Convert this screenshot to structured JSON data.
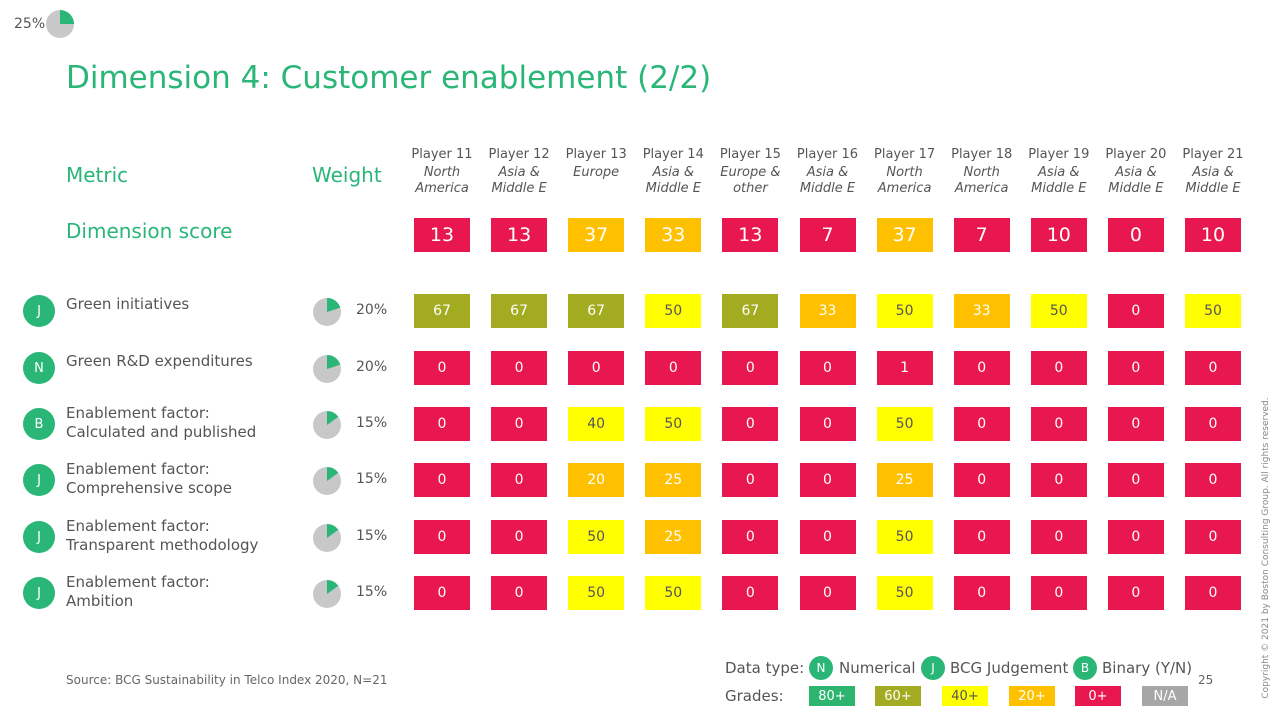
{
  "progress": {
    "label": "25%",
    "fraction": 0.25
  },
  "title": "Dimension 4: Customer enablement (2/2)",
  "headers": {
    "metric": "Metric",
    "weight": "Weight",
    "dimension_score": "Dimension score"
  },
  "colors": {
    "accent": "#29b677",
    "grade_80": "#2db56f",
    "grade_60": "#a3ac20",
    "grade_40": "#ffff00",
    "grade_20": "#ffc000",
    "grade_0": "#e8174f",
    "grade_na": "#a6a6a6"
  },
  "players": [
    {
      "name": "Player 11",
      "region": "North America"
    },
    {
      "name": "Player 12",
      "region": "Asia & Middle E"
    },
    {
      "name": "Player 13",
      "region": "Europe"
    },
    {
      "name": "Player 14",
      "region": "Asia & Middle E"
    },
    {
      "name": "Player 15",
      "region": "Europe & other"
    },
    {
      "name": "Player 16",
      "region": "Asia & Middle E"
    },
    {
      "name": "Player 17",
      "region": "North America"
    },
    {
      "name": "Player 18",
      "region": "North America"
    },
    {
      "name": "Player 19",
      "region": "Asia & Middle E"
    },
    {
      "name": "Player 20",
      "region": "Asia & Middle E"
    },
    {
      "name": "Player 21",
      "region": "Asia & Middle E"
    }
  ],
  "dimension_scores": [
    "13",
    "13",
    "37",
    "33",
    "13",
    "7",
    "37",
    "7",
    "10",
    "0",
    "10"
  ],
  "metrics": [
    {
      "type": "J",
      "name": [
        "Green initiatives"
      ],
      "weight": "20%",
      "weight_fraction": 0.2,
      "values": [
        "67",
        "67",
        "67",
        "50",
        "67",
        "33",
        "50",
        "33",
        "50",
        "0",
        "50"
      ]
    },
    {
      "type": "N",
      "name": [
        "Green R&D expenditures"
      ],
      "weight": "20%",
      "weight_fraction": 0.2,
      "values": [
        "0",
        "0",
        "0",
        "0",
        "0",
        "0",
        "1",
        "0",
        "0",
        "0",
        "0"
      ]
    },
    {
      "type": "B",
      "name": [
        "Enablement factor:",
        "Calculated and published"
      ],
      "weight": "15%",
      "weight_fraction": 0.15,
      "values": [
        "0",
        "0",
        "40",
        "50",
        "0",
        "0",
        "50",
        "0",
        "0",
        "0",
        "0"
      ]
    },
    {
      "type": "J",
      "name": [
        "Enablement factor:",
        "Comprehensive scope"
      ],
      "weight": "15%",
      "weight_fraction": 0.15,
      "values": [
        "0",
        "0",
        "20",
        "25",
        "0",
        "0",
        "25",
        "0",
        "0",
        "0",
        "0"
      ]
    },
    {
      "type": "J",
      "name": [
        "Enablement factor:",
        "Transparent methodology"
      ],
      "weight": "15%",
      "weight_fraction": 0.15,
      "values": [
        "0",
        "0",
        "50",
        "25",
        "0",
        "0",
        "50",
        "0",
        "0",
        "0",
        "0"
      ]
    },
    {
      "type": "J",
      "name": [
        "Enablement factor:",
        "Ambition"
      ],
      "weight": "15%",
      "weight_fraction": 0.15,
      "values": [
        "0",
        "0",
        "50",
        "50",
        "0",
        "0",
        "50",
        "0",
        "0",
        "0",
        "0"
      ]
    }
  ],
  "source": "Source: BCG Sustainability in Telco Index 2020, N=21",
  "legend": {
    "data_type_label": "Data type:",
    "types": [
      {
        "badge": "N",
        "label": "Numerical"
      },
      {
        "badge": "J",
        "label": "BCG Judgement"
      },
      {
        "badge": "B",
        "label": "Binary (Y/N)"
      }
    ],
    "grades_label": "Grades:",
    "grades": [
      "80+",
      "60+",
      "40+",
      "20+",
      "0+",
      "N/A"
    ]
  },
  "page_number": "25",
  "copyright": "Copyright © 2021 by Boston Consulting Group. All rights reserved."
}
